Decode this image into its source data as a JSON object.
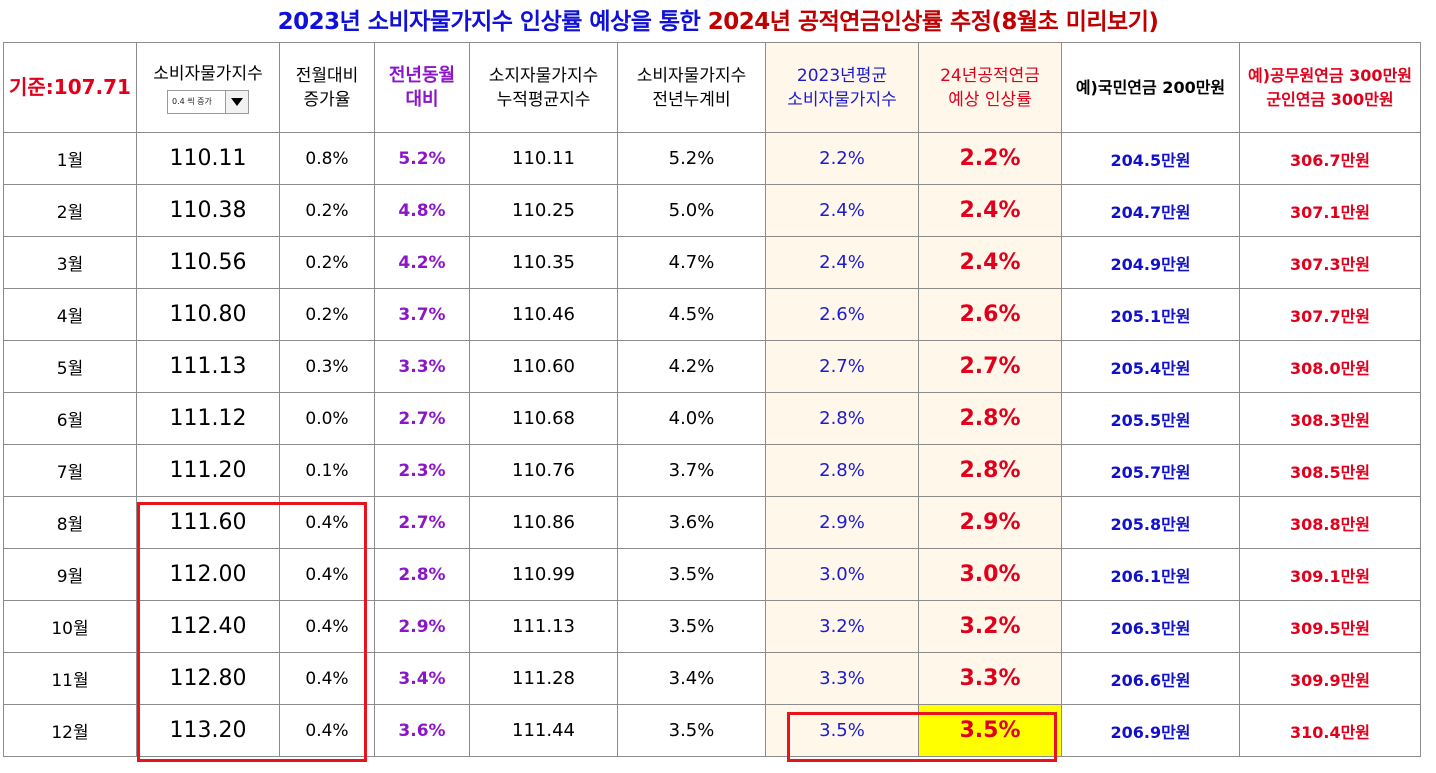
{
  "title": {
    "part1": "2023년 소비자물가지수 인상률 예상을 통한 ",
    "part2": "2024년 공적연금인상률 추정(8월초 미리보기)"
  },
  "header": {
    "base": "기준:107.71",
    "cpi_label": "소비자물가지수",
    "dropdown_value": "0.4 씩 증가",
    "mom_line1": "전월대비",
    "mom_line2": "증가율",
    "yoy_line1": "전년동월",
    "yoy_line2": "대비",
    "cum_line1": "소지자물가지수",
    "cum_line2": "누적평균지수",
    "yrt_line1": "소비자물가지수",
    "yrt_line2": "전년누계비",
    "avg_line1": "2023년평균",
    "avg_line2": "소비자물가지수",
    "rate_line1": "24년공적연금",
    "rate_line2": "예상 인상률",
    "np": "예)국민연금 200만원",
    "gp_line1": "예)공무원연금 300만원",
    "gp_line2": "군인연금 300만원"
  },
  "rows": [
    {
      "month": "1월",
      "cpi": "110.11",
      "mom": "0.8%",
      "yoy": "5.2%",
      "cum": "110.11",
      "yrt": "5.2%",
      "avg": "2.2%",
      "rate": "2.2%",
      "np": "204.5만원",
      "gp": "306.7만원"
    },
    {
      "month": "2월",
      "cpi": "110.38",
      "mom": "0.2%",
      "yoy": "4.8%",
      "cum": "110.25",
      "yrt": "5.0%",
      "avg": "2.4%",
      "rate": "2.4%",
      "np": "204.7만원",
      "gp": "307.1만원"
    },
    {
      "month": "3월",
      "cpi": "110.56",
      "mom": "0.2%",
      "yoy": "4.2%",
      "cum": "110.35",
      "yrt": "4.7%",
      "avg": "2.4%",
      "rate": "2.4%",
      "np": "204.9만원",
      "gp": "307.3만원"
    },
    {
      "month": "4월",
      "cpi": "110.80",
      "mom": "0.2%",
      "yoy": "3.7%",
      "cum": "110.46",
      "yrt": "4.5%",
      "avg": "2.6%",
      "rate": "2.6%",
      "np": "205.1만원",
      "gp": "307.7만원"
    },
    {
      "month": "5월",
      "cpi": "111.13",
      "mom": "0.3%",
      "yoy": "3.3%",
      "cum": "110.60",
      "yrt": "4.2%",
      "avg": "2.7%",
      "rate": "2.7%",
      "np": "205.4만원",
      "gp": "308.0만원"
    },
    {
      "month": "6월",
      "cpi": "111.12",
      "mom": "0.0%",
      "yoy": "2.7%",
      "cum": "110.68",
      "yrt": "4.0%",
      "avg": "2.8%",
      "rate": "2.8%",
      "np": "205.5만원",
      "gp": "308.3만원"
    },
    {
      "month": "7월",
      "cpi": "111.20",
      "mom": "0.1%",
      "yoy": "2.3%",
      "cum": "110.76",
      "yrt": "3.7%",
      "avg": "2.8%",
      "rate": "2.8%",
      "np": "205.7만원",
      "gp": "308.5만원"
    },
    {
      "month": "8월",
      "cpi": "111.60",
      "mom": "0.4%",
      "yoy": "2.7%",
      "cum": "110.86",
      "yrt": "3.6%",
      "avg": "2.9%",
      "rate": "2.9%",
      "np": "205.8만원",
      "gp": "308.8만원"
    },
    {
      "month": "9월",
      "cpi": "112.00",
      "mom": "0.4%",
      "yoy": "2.8%",
      "cum": "110.99",
      "yrt": "3.5%",
      "avg": "3.0%",
      "rate": "3.0%",
      "np": "206.1만원",
      "gp": "309.1만원"
    },
    {
      "month": "10월",
      "cpi": "112.40",
      "mom": "0.4%",
      "yoy": "2.9%",
      "cum": "111.13",
      "yrt": "3.5%",
      "avg": "3.2%",
      "rate": "3.2%",
      "np": "206.3만원",
      "gp": "309.5만원"
    },
    {
      "month": "11월",
      "cpi": "112.80",
      "mom": "0.4%",
      "yoy": "3.4%",
      "cum": "111.28",
      "yrt": "3.4%",
      "avg": "3.3%",
      "rate": "3.3%",
      "np": "206.6만원",
      "gp": "309.9만원"
    },
    {
      "month": "12월",
      "cpi": "113.20",
      "mom": "0.4%",
      "yoy": "3.6%",
      "cum": "111.44",
      "yrt": "3.5%",
      "avg": "3.5%",
      "rate": "3.5%",
      "np": "206.9만원",
      "gp": "310.4만원"
    }
  ],
  "colors": {
    "title_blue": "#1010d8",
    "title_red": "#c00000",
    "red": "#e0001c",
    "purple": "#8a16c8",
    "blue": "#1b1bd0",
    "highlight_yellow": "#ffff00",
    "cream": "#fff8ea"
  },
  "icons": {
    "dropdown": "chevron-down-icon"
  }
}
